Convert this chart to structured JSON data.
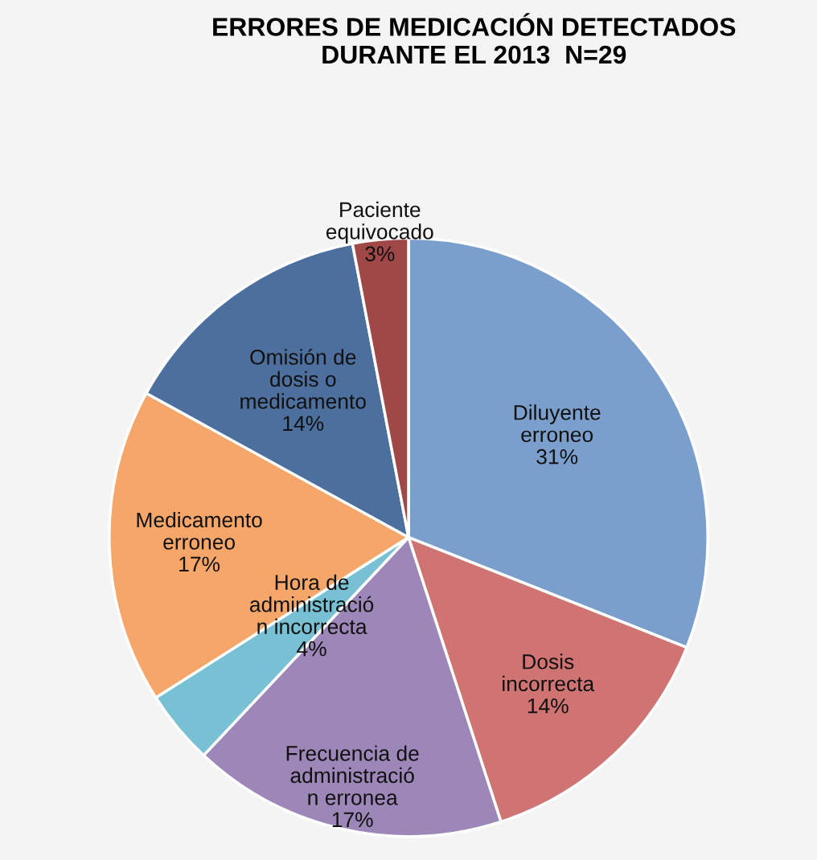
{
  "chart_data": {
    "type": "pie",
    "title": "ERRORES DE MEDICACIÓN DETECTADOS\nDURANTE EL 2013  N=29",
    "categories": [
      "Diluyente\nerroneo",
      "Dosis\nincorrecta",
      "Frecuencia de\nadministració\nn erronea",
      "Hora de\nadministració\nn incorrecta",
      "Medicamento\nerroneo",
      "Omisión de\ndosis o\nmedicamento",
      "Paciente\nequivocado"
    ],
    "values": [
      31,
      14,
      17,
      4,
      17,
      14,
      3
    ],
    "value_labels": [
      "31%",
      "14%",
      "17%",
      "4%",
      "17%",
      "14%",
      "3%"
    ],
    "colors": [
      "#7a9fcc",
      "#cf7472",
      "#9c87b8",
      "#78c0d3",
      "#f5a668",
      "#4d6f9e",
      "#a04848"
    ],
    "legend": false
  }
}
